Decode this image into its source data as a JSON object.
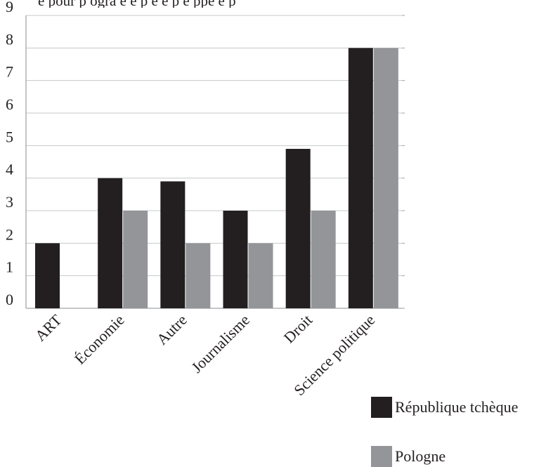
{
  "header_fragment": "e pour p  ogra   e  e   p e   e  p e   ppe e  p",
  "chart_data": {
    "type": "bar",
    "title": "",
    "xlabel": "",
    "ylabel": "",
    "categories": [
      "ART",
      "Économie",
      "Autre",
      "Journalisme",
      "Droit",
      "Science politique"
    ],
    "ylim": [
      0,
      9
    ],
    "yticks": [
      0,
      1,
      2,
      3,
      4,
      5,
      6,
      7,
      8,
      9
    ],
    "grid": true,
    "legend_position": "bottom-right",
    "series": [
      {
        "name": "République tchèque",
        "color": "#231f20",
        "values": [
          2,
          4,
          3.9,
          3,
          4.9,
          8
        ]
      },
      {
        "name": "Pologne",
        "color": "#939598",
        "values": [
          0,
          3,
          2,
          2,
          3,
          8
        ]
      }
    ]
  }
}
